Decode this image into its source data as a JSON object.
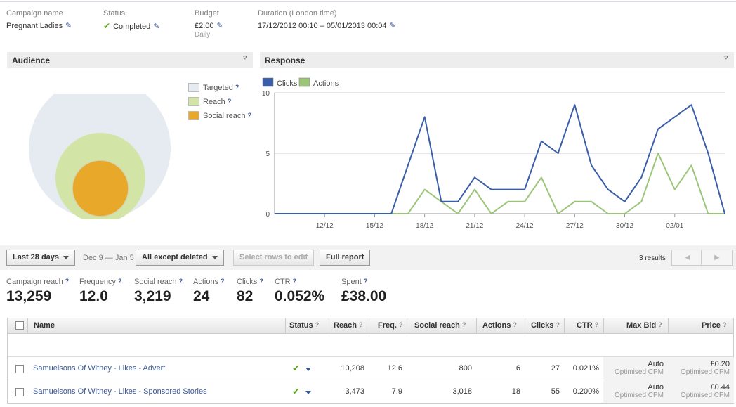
{
  "summary": {
    "campaign_name_label": "Campaign name",
    "campaign_name": "Pregnant Ladies",
    "status_label": "Status",
    "status": "Completed",
    "budget_label": "Budget",
    "budget": "£2.00",
    "budget_period": "Daily",
    "duration_label": "Duration (London time)",
    "duration": "17/12/2012 00:10 – 05/01/2013 00:04"
  },
  "audience": {
    "title": "Audience",
    "help": "?",
    "legend": [
      {
        "label": "Targeted",
        "color": "#e6ebf2"
      },
      {
        "label": "Reach",
        "color": "#d3e5a6"
      },
      {
        "label": "Social reach",
        "color": "#e8a92b"
      }
    ]
  },
  "response": {
    "title": "Response",
    "help": "?"
  },
  "chart_data": {
    "type": "line",
    "title": "",
    "xlabel": "",
    "ylabel": "",
    "ylim": [
      0,
      10
    ],
    "y_ticks": [
      "10",
      "5",
      "0"
    ],
    "x_tick_labels": [
      "12/12",
      "15/12",
      "18/12",
      "21/12",
      "24/12",
      "27/12",
      "30/12",
      "02/01"
    ],
    "legend_position": "top-left",
    "grid": true,
    "series": [
      {
        "name": "Clicks",
        "color": "#3a5ea8",
        "values": [
          0,
          0,
          0,
          0,
          0,
          0,
          0,
          0,
          4,
          8,
          1,
          1,
          3,
          2,
          2,
          2,
          6,
          5,
          9,
          4,
          2,
          1,
          3,
          7,
          8,
          9,
          5,
          0
        ]
      },
      {
        "name": "Actions",
        "color": "#9cc57a",
        "values": [
          0,
          0,
          0,
          0,
          0,
          0,
          0,
          0,
          0,
          2,
          1,
          0,
          2,
          0,
          1,
          1,
          3,
          0,
          1,
          1,
          0,
          0,
          1,
          5,
          2,
          4,
          0,
          0
        ]
      }
    ]
  },
  "toolbar": {
    "date_filter": "Last 28 days",
    "date_range": "Dec 9 — Jan 5",
    "status_filter": "All except deleted",
    "edit_button": "Select rows to edit",
    "report_button": "Full report",
    "results": "3 results",
    "prev": "◀",
    "next": "▶"
  },
  "stats": [
    {
      "label": "Campaign reach",
      "value": "13,259"
    },
    {
      "label": "Frequency",
      "value": "12.0"
    },
    {
      "label": "Social reach",
      "value": "3,219"
    },
    {
      "label": "Actions",
      "value": "24"
    },
    {
      "label": "Clicks",
      "value": "82"
    },
    {
      "label": "CTR",
      "value": "0.052%"
    },
    {
      "label": "Spent",
      "value": "£38.00"
    }
  ],
  "table": {
    "headers": {
      "name": "Name",
      "status": "Status",
      "reach": "Reach",
      "freq": "Freq.",
      "social": "Social reach",
      "actions": "Actions",
      "clicks": "Clicks",
      "ctr": "CTR",
      "maxbid": "Max Bid",
      "price": "Price"
    },
    "rows": [
      {
        "name": "Samuelsons Of Witney - Likes - Advert",
        "reach": "10,208",
        "freq": "12.6",
        "social": "800",
        "actions": "6",
        "clicks": "27",
        "ctr": "0.021%",
        "maxbid": "Auto",
        "maxbid_sub": "Optimised CPM",
        "price": "£0.20",
        "price_sub": "Optimised CPM"
      },
      {
        "name": "Samuelsons Of Witney - Likes - Sponsored Stories",
        "reach": "3,473",
        "freq": "7.9",
        "social": "3,018",
        "actions": "18",
        "clicks": "55",
        "ctr": "0.200%",
        "maxbid": "Auto",
        "maxbid_sub": "Optimised CPM",
        "price": "£0.44",
        "price_sub": "Optimised CPM"
      }
    ]
  }
}
